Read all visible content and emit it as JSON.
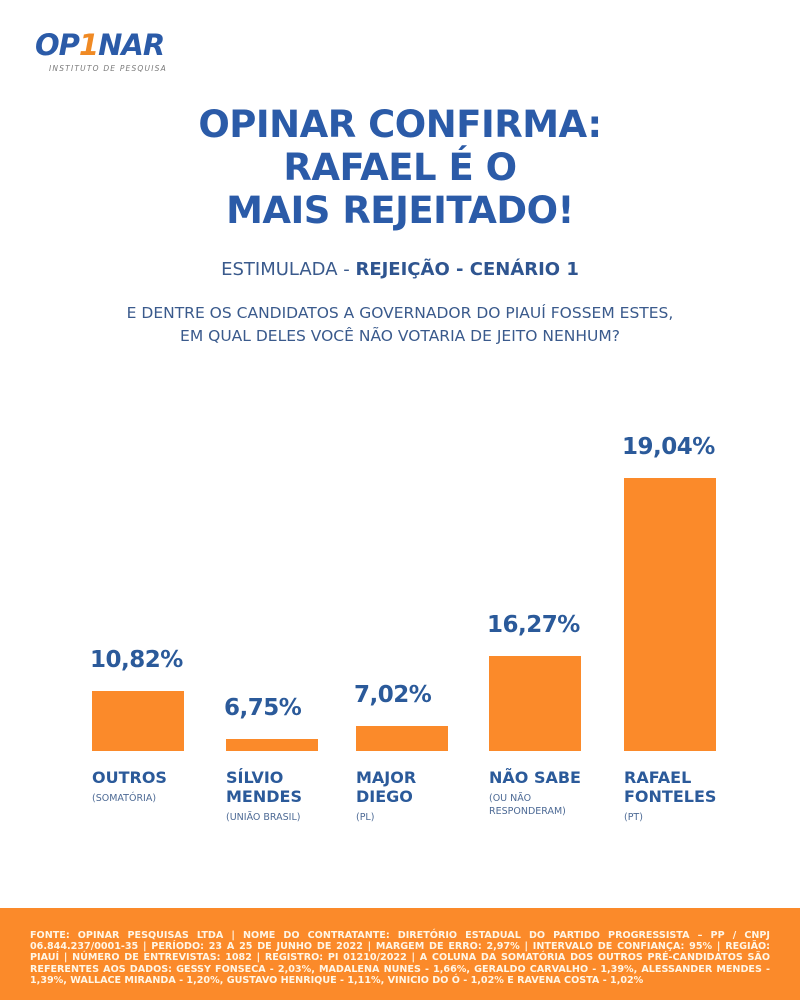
{
  "logo": {
    "brand_part1": "OP",
    "brand_accent": "1",
    "brand_part2": "NAR",
    "tagline": "INSTITUTO DE PESQUISA"
  },
  "headline": {
    "line1": "OPINAR CONFIRMA:",
    "line2": "RAFAEL É O",
    "line3": "MAIS REJEITADO!"
  },
  "subtitle": {
    "prefix": "ESTIMULADA - ",
    "bold": "REJEIÇÃO - CENÁRIO 1"
  },
  "question": {
    "line1": "E DENTRE OS CANDIDATOS A GOVERNADOR DO PIAUÍ FOSSEM ESTES,",
    "line2": "EM QUAL DELES VOCÊ NÃO VOTARIA DE JEITO NENHUM?"
  },
  "colors": {
    "primary_blue": "#2b5ba8",
    "bar_orange": "#fb8a2a",
    "footer_orange": "#fb8a2a"
  },
  "chart_data": {
    "type": "bar",
    "title": "Estimulada - Rejeição - Cenário 1",
    "xlabel": "",
    "ylabel": "",
    "unit": "%",
    "grid": false,
    "categories": [
      "OUTROS",
      "SÍLVIO MENDES",
      "MAJOR DIEGO",
      "NÃO SABE",
      "RAFAEL FONTELES"
    ],
    "label_lines": [
      [
        "OUTROS"
      ],
      [
        "SÍLVIO",
        "MENDES"
      ],
      [
        "MAJOR",
        "DIEGO"
      ],
      [
        "NÃO SABE"
      ],
      [
        "RAFAEL",
        "FONTELES"
      ]
    ],
    "sublabels": [
      [
        "(SOMATÓRIA)"
      ],
      [
        "(UNIÃO BRASIL)"
      ],
      [
        "(PL)"
      ],
      [
        "(OU NÃO",
        "RESPONDERAM)"
      ],
      [
        "(PT)"
      ]
    ],
    "values": [
      10.82,
      6.75,
      7.02,
      16.27,
      19.04
    ],
    "value_labels": [
      "10,82%",
      "6,75%",
      "7,02%",
      "16,27%",
      "19,04%"
    ]
  },
  "footer": {
    "text": "FONTE: OPINAR PESQUISAS LTDA | NOME DO CONTRATANTE: DIRETÓRIO ESTADUAL DO PARTIDO PROGRESSISTA – PP / CNPJ 06.844.237/0001-35 | PERÍODO: 23 A 25 DE JUNHO DE 2022 | MARGEM DE ERRO: 2,97% | INTERVALO DE CONFIANÇA: 95% | REGIÃO: PIAUÍ | NÚMERO DE ENTREVISTAS: 1082 | REGISTRO: PI 01210/2022 | A COLUNA DA SOMATÓRIA DOS OUTROS PRÉ-CANDIDATOS SÃO REFERENTES AOS DADOS: GESSY FONSECA - 2,03%, MADALENA NUNES - 1,66%, GERALDO CARVALHO - 1,39%, ALESSANDER MENDES - 1,39%, WALLACE MIRANDA - 1,20%, GUSTAVO HENRIQUE - 1,11%, VINICIO DO Ó - 1,02% E RAVENA COSTA - 1,02%"
  }
}
